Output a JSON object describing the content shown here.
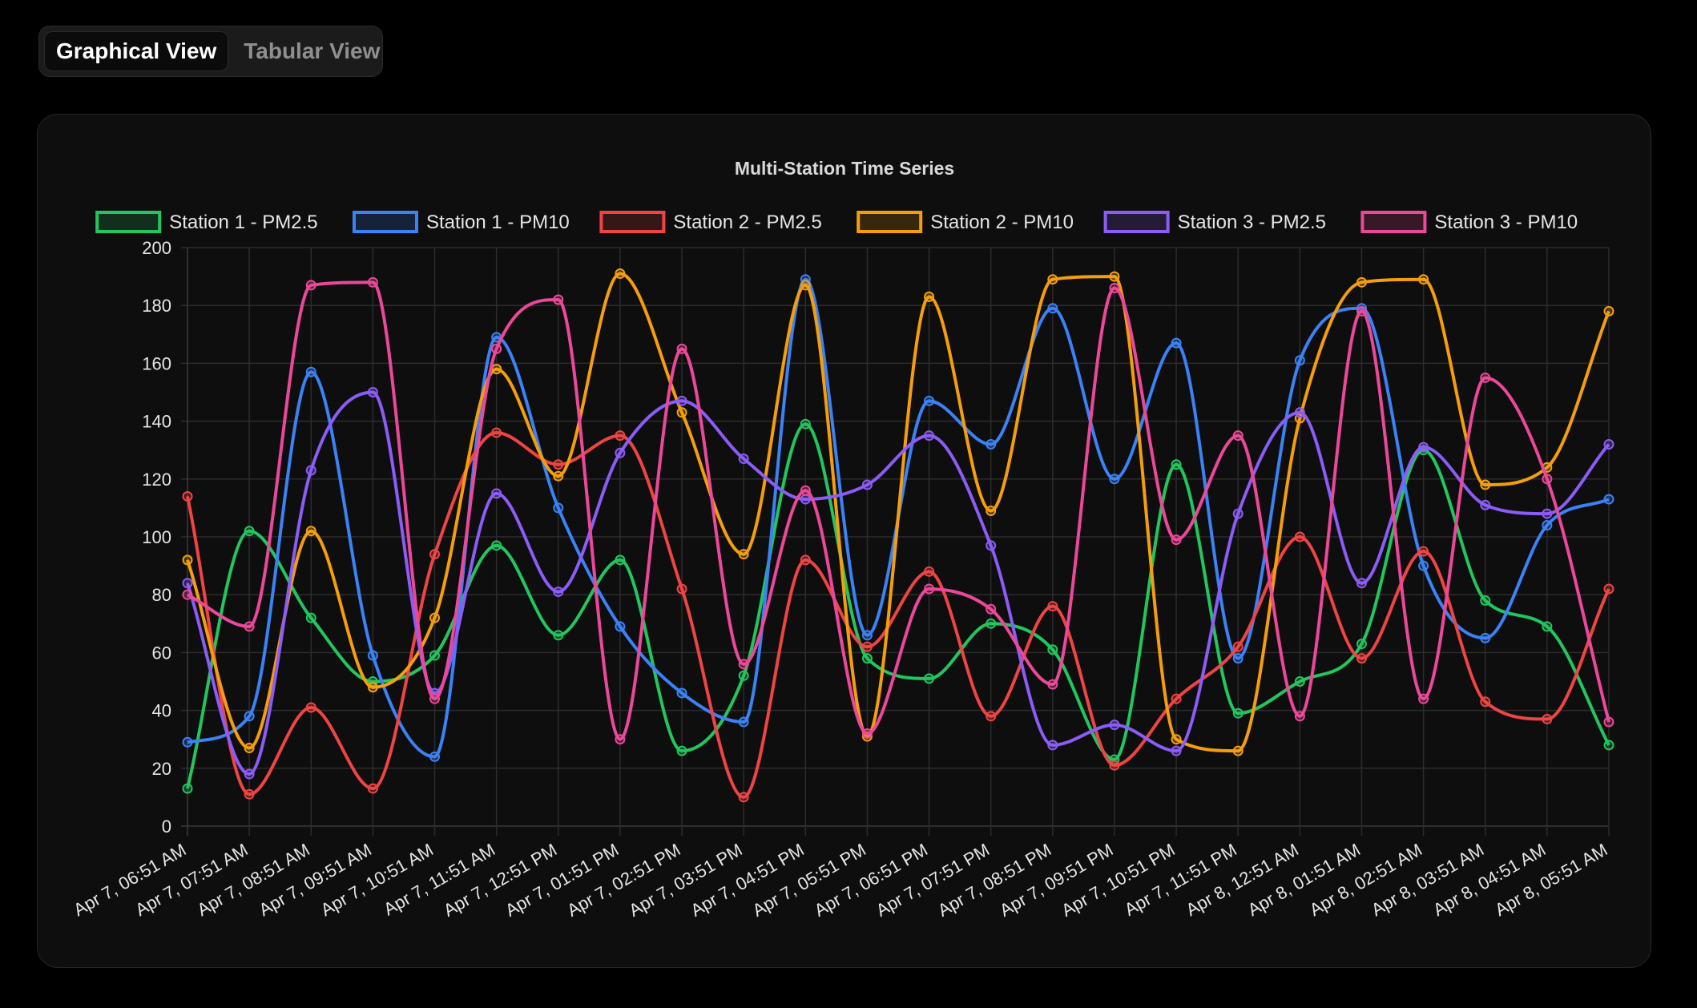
{
  "toggle": {
    "graphical_label": "Graphical View",
    "tabular_label": "Tabular View"
  },
  "chart_data": {
    "type": "line",
    "title": "Multi-Station Time Series",
    "xlabel": "",
    "ylabel": "",
    "ylim": [
      0,
      200
    ],
    "yticks": [
      0,
      20,
      40,
      60,
      80,
      100,
      120,
      140,
      160,
      180,
      200
    ],
    "grid": true,
    "legend_position": "top",
    "categories": [
      "Apr 7, 06:51 AM",
      "Apr 7, 07:51 AM",
      "Apr 7, 08:51 AM",
      "Apr 7, 09:51 AM",
      "Apr 7, 10:51 AM",
      "Apr 7, 11:51 AM",
      "Apr 7, 12:51 PM",
      "Apr 7, 01:51 PM",
      "Apr 7, 02:51 PM",
      "Apr 7, 03:51 PM",
      "Apr 7, 04:51 PM",
      "Apr 7, 05:51 PM",
      "Apr 7, 06:51 PM",
      "Apr 7, 07:51 PM",
      "Apr 7, 08:51 PM",
      "Apr 7, 09:51 PM",
      "Apr 7, 10:51 PM",
      "Apr 7, 11:51 PM",
      "Apr 8, 12:51 AM",
      "Apr 8, 01:51 AM",
      "Apr 8, 02:51 AM",
      "Apr 8, 03:51 AM",
      "Apr 8, 04:51 AM",
      "Apr 8, 05:51 AM"
    ],
    "series": [
      {
        "name": "Station 1 - PM2.5",
        "color": "#22c55e",
        "values": [
          13,
          102,
          72,
          50,
          59,
          97,
          66,
          92,
          26,
          52,
          139,
          58,
          51,
          70,
          61,
          23,
          125,
          39,
          50,
          63,
          130,
          78,
          69,
          28
        ]
      },
      {
        "name": "Station 1 - PM10",
        "color": "#3b82f6",
        "values": [
          29,
          38,
          157,
          59,
          24,
          169,
          110,
          69,
          46,
          36,
          189,
          66,
          147,
          132,
          179,
          120,
          167,
          58,
          161,
          179,
          90,
          65,
          104,
          113
        ]
      },
      {
        "name": "Station 2 - PM2.5",
        "color": "#ef4444",
        "values": [
          114,
          11,
          41,
          13,
          94,
          136,
          125,
          135,
          82,
          10,
          92,
          62,
          88,
          38,
          76,
          21,
          44,
          62,
          100,
          58,
          95,
          43,
          37,
          82
        ]
      },
      {
        "name": "Station 2 - PM10",
        "color": "#f59e0b",
        "values": [
          92,
          27,
          102,
          48,
          72,
          158,
          121,
          191,
          143,
          94,
          187,
          31,
          183,
          109,
          189,
          190,
          30,
          26,
          141,
          188,
          189,
          118,
          124,
          178
        ]
      },
      {
        "name": "Station 3 - PM2.5",
        "color": "#8b5cf6",
        "values": [
          84,
          18,
          123,
          150,
          46,
          115,
          81,
          129,
          147,
          127,
          113,
          118,
          135,
          97,
          28,
          35,
          26,
          108,
          143,
          84,
          131,
          111,
          108,
          132
        ]
      },
      {
        "name": "Station 3 - PM10",
        "color": "#ec4899",
        "values": [
          80,
          69,
          187,
          188,
          44,
          165,
          182,
          30,
          165,
          56,
          116,
          32,
          82,
          75,
          49,
          186,
          99,
          135,
          38,
          178,
          44,
          155,
          120,
          36
        ]
      }
    ]
  }
}
